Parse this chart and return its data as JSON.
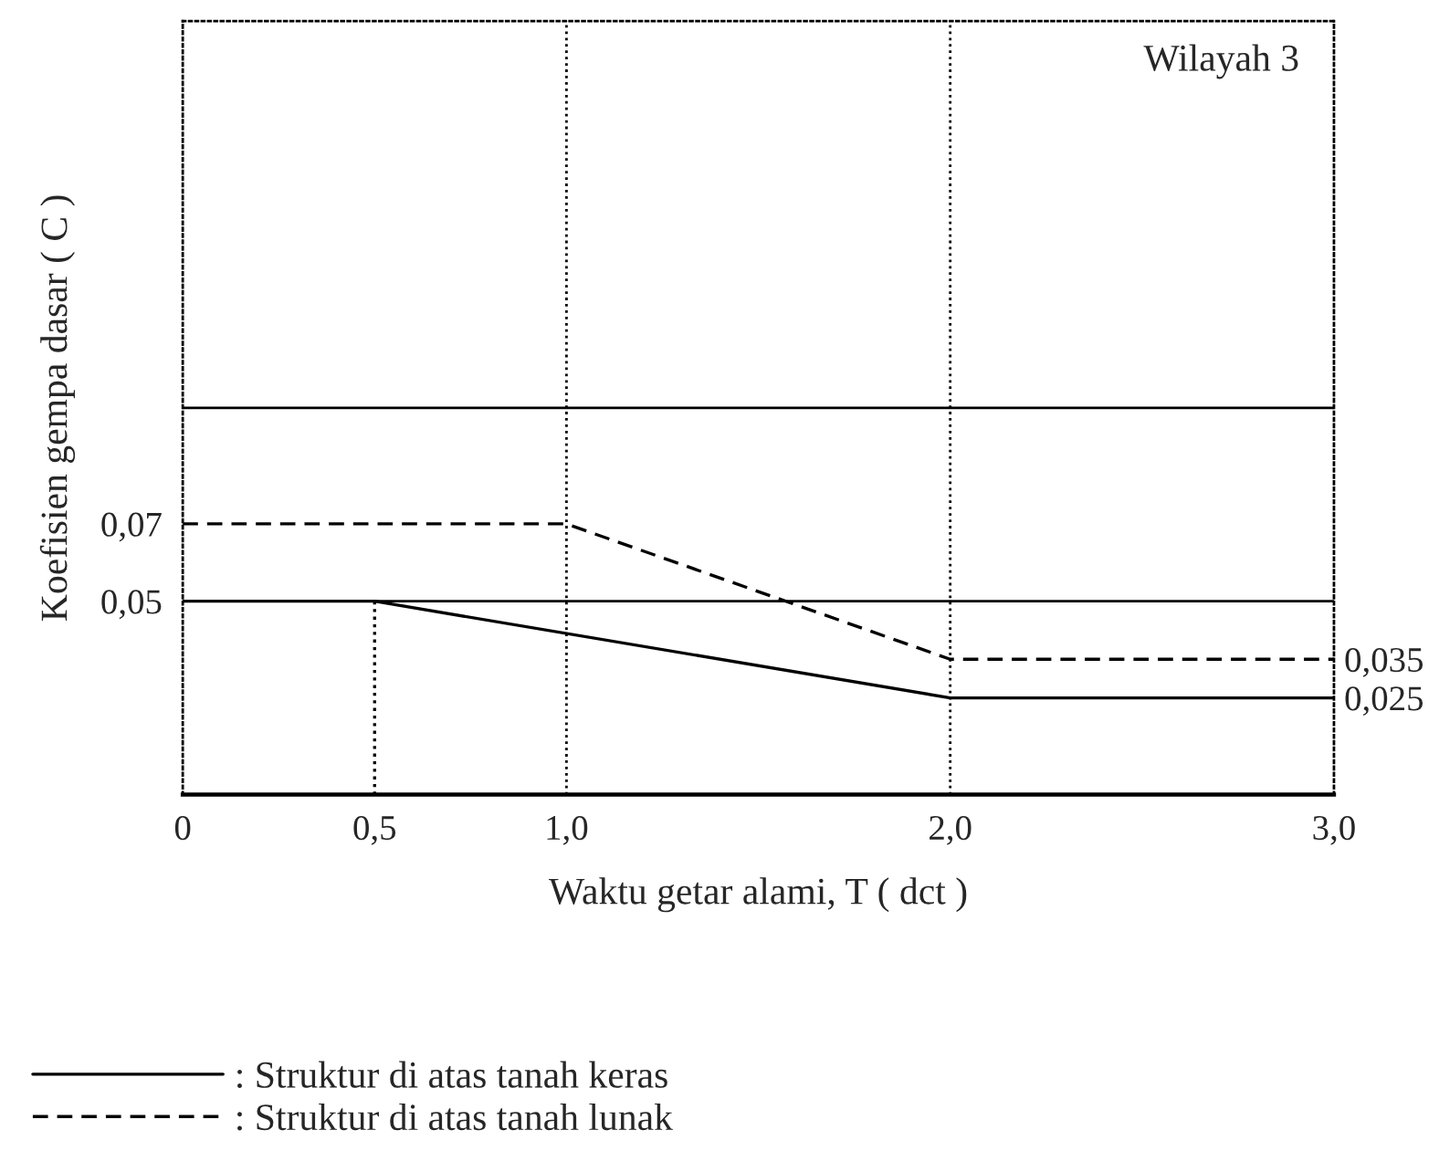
{
  "chart_data": {
    "type": "line",
    "xlabel": "Waktu getar alami, T ( dct )",
    "ylabel": "Koefisien gempa dasar ( C )",
    "annotations": [
      "Wilayah 3"
    ],
    "xlim": [
      0,
      3.0
    ],
    "xticks": [
      {
        "value": 0,
        "label": "0"
      },
      {
        "value": 0.5,
        "label": "0,5"
      },
      {
        "value": 1.0,
        "label": "1,0"
      },
      {
        "value": 2.0,
        "label": "2,0"
      },
      {
        "value": 3.0,
        "label": "3,0"
      }
    ],
    "ylim": [
      0,
      0.2
    ],
    "yticks": [
      {
        "value": 0.05,
        "label": "0,05"
      },
      {
        "value": 0.07,
        "label": "0,07"
      }
    ],
    "y2lim": [
      0,
      0.2
    ],
    "y2ticks": [
      {
        "value": 0.025,
        "label": "0,025"
      },
      {
        "value": 0.035,
        "label": "0,035"
      }
    ],
    "ref_lines": [
      {
        "axis": "y",
        "value": 0.05,
        "color": "#000000",
        "line_style": "solid"
      },
      {
        "axis": "y",
        "value": 0.1,
        "color": "#000000",
        "line_style": "solid"
      },
      {
        "axis": "x",
        "value": 1.0,
        "color": "#000000",
        "line_style": "dotted"
      },
      {
        "axis": "x",
        "value": 2.0,
        "color": "#000000",
        "line_style": "dotted"
      }
    ],
    "series": [
      {
        "name": ": Struktur di atas tanah keras",
        "color": "#000000",
        "line_style": "solid",
        "x": [
          0,
          0.5,
          2.0,
          3.0
        ],
        "values": [
          0.05,
          0.05,
          0.025,
          0.025
        ]
      },
      {
        "name": ": Struktur di atas tanah lunak",
        "color": "#000000",
        "line_style": "dashed",
        "x": [
          0,
          1.0,
          2.0,
          3.0
        ],
        "values": [
          0.07,
          0.07,
          0.035,
          0.035
        ]
      },
      {
        "color": "#000000",
        "line_style": "dotted",
        "x": [
          0.5,
          0.5
        ],
        "values": [
          0,
          0.05
        ]
      }
    ],
    "grid": false,
    "legend": "bottom",
    "marker": "none"
  }
}
